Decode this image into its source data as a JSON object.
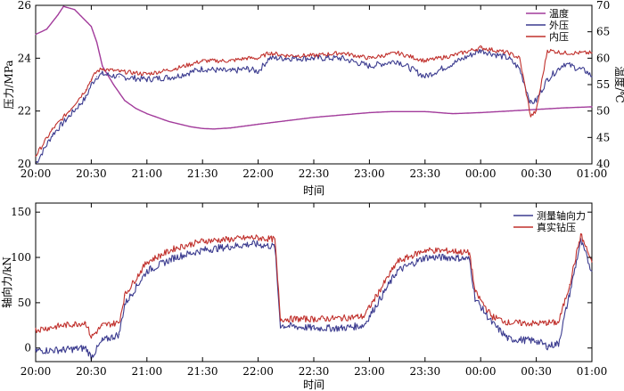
{
  "chart_data": [
    {
      "type": "line",
      "xlabel": "时间",
      "ylabel_left": "压力/MPa",
      "ylabel_right": "温度/℃",
      "x_ticks": [
        "20:00",
        "20:30",
        "21:00",
        "21:30",
        "22:00",
        "22:30",
        "23:00",
        "23:30",
        "00:00",
        "00:30",
        "01:00"
      ],
      "x_range_hours": [
        0,
        5
      ],
      "ylim_left": [
        20,
        26
      ],
      "yticks_left": [
        20,
        22,
        24,
        26
      ],
      "ylim_right": [
        40,
        70
      ],
      "yticks_right": [
        40,
        45,
        50,
        55,
        60,
        65,
        70
      ],
      "legend_position": "top-right",
      "grid": false,
      "series": [
        {
          "name": "温度",
          "color": "#a23b9b",
          "axis": "right",
          "x": [
            0,
            0.1,
            0.2,
            0.25,
            0.35,
            0.5,
            0.55,
            0.6,
            0.7,
            0.8,
            0.9,
            1.0,
            1.2,
            1.4,
            1.5,
            1.6,
            1.75,
            2.0,
            2.5,
            3.0,
            3.2,
            3.5,
            3.75,
            4.0,
            4.25,
            4.5,
            4.75,
            5.0
          ],
          "y": [
            64.5,
            65.5,
            68.2,
            69.8,
            69.2,
            66.0,
            63.0,
            58.5,
            55.0,
            52.0,
            50.5,
            49.5,
            48.0,
            47.0,
            46.7,
            46.6,
            46.8,
            47.5,
            48.8,
            49.7,
            49.9,
            49.9,
            49.5,
            49.7,
            50.0,
            50.3,
            50.6,
            50.8
          ]
        },
        {
          "name": "外压",
          "color": "#3b3b8f",
          "axis": "left",
          "x": [
            0,
            0.15,
            0.3,
            0.45,
            0.5,
            0.55,
            0.6,
            0.75,
            1.0,
            1.25,
            1.5,
            1.75,
            1.9,
            2.0,
            2.1,
            2.25,
            2.5,
            2.75,
            3.0,
            3.25,
            3.5,
            3.75,
            4.0,
            4.25,
            4.35,
            4.45,
            4.5,
            4.6,
            4.75,
            4.95,
            5.0
          ],
          "y": [
            20.0,
            21.1,
            21.8,
            22.5,
            23.0,
            23.3,
            23.4,
            23.3,
            23.2,
            23.3,
            23.6,
            23.5,
            23.6,
            23.5,
            24.0,
            24.0,
            24.0,
            24.0,
            23.7,
            23.9,
            23.3,
            23.8,
            24.3,
            24.0,
            23.6,
            22.3,
            22.4,
            23.2,
            23.8,
            23.5,
            23.3
          ]
        },
        {
          "name": "内压",
          "color": "#c0302c",
          "axis": "left",
          "x": [
            0,
            0.15,
            0.3,
            0.45,
            0.5,
            0.55,
            0.6,
            0.75,
            1.0,
            1.25,
            1.5,
            1.75,
            1.9,
            2.0,
            2.1,
            2.25,
            2.5,
            2.75,
            3.0,
            3.25,
            3.5,
            3.75,
            4.0,
            4.25,
            4.35,
            4.45,
            4.5,
            4.6,
            4.75,
            4.95,
            5.0
          ],
          "y": [
            20.3,
            21.3,
            22.0,
            22.8,
            23.2,
            23.5,
            23.6,
            23.5,
            23.4,
            23.6,
            23.9,
            23.9,
            24.0,
            24.0,
            24.2,
            24.1,
            24.1,
            24.2,
            24.0,
            24.2,
            23.9,
            24.1,
            24.4,
            24.2,
            24.0,
            21.8,
            22.0,
            24.3,
            24.2,
            24.2,
            24.2
          ]
        }
      ]
    },
    {
      "type": "line",
      "xlabel": "时间",
      "ylabel": "轴向力/kN",
      "x_ticks": [
        "20:00",
        "20:30",
        "21:00",
        "21:30",
        "22:00",
        "22:30",
        "23:00",
        "23:30",
        "00:00",
        "00:30",
        "01:00"
      ],
      "x_range_hours": [
        0,
        5
      ],
      "ylim": [
        -15,
        160
      ],
      "yticks": [
        0,
        50,
        100,
        150
      ],
      "legend_position": "top-right",
      "grid": false,
      "series": [
        {
          "name": "测量轴向力",
          "color": "#3b3b8f",
          "x": [
            0,
            0.25,
            0.45,
            0.5,
            0.6,
            0.75,
            0.8,
            1.0,
            1.25,
            1.5,
            1.75,
            1.95,
            2.15,
            2.2,
            2.5,
            2.75,
            2.95,
            3.0,
            3.1,
            3.25,
            3.5,
            3.75,
            3.9,
            3.95,
            4.1,
            4.25,
            4.5,
            4.6,
            4.7,
            4.8,
            4.9,
            5.0
          ],
          "y": [
            -3,
            -2,
            0,
            -10,
            8,
            15,
            48,
            85,
            100,
            108,
            112,
            115,
            112,
            25,
            22,
            22,
            25,
            35,
            55,
            85,
            100,
            100,
            98,
            55,
            28,
            10,
            8,
            2,
            5,
            60,
            118,
            85
          ]
        },
        {
          "name": "真实钻压",
          "color": "#c0302c",
          "x": [
            0,
            0.25,
            0.45,
            0.5,
            0.6,
            0.75,
            0.8,
            1.0,
            1.25,
            1.5,
            1.75,
            1.95,
            2.15,
            2.2,
            2.5,
            2.75,
            2.95,
            3.0,
            3.1,
            3.25,
            3.5,
            3.75,
            3.9,
            3.95,
            4.1,
            4.25,
            4.5,
            4.6,
            4.7,
            4.8,
            4.9,
            5.0
          ],
          "y": [
            20,
            25,
            28,
            12,
            25,
            28,
            58,
            95,
            110,
            118,
            120,
            122,
            120,
            32,
            32,
            33,
            35,
            45,
            65,
            95,
            108,
            107,
            105,
            62,
            35,
            28,
            27,
            28,
            28,
            70,
            125,
            95
          ]
        }
      ]
    }
  ]
}
